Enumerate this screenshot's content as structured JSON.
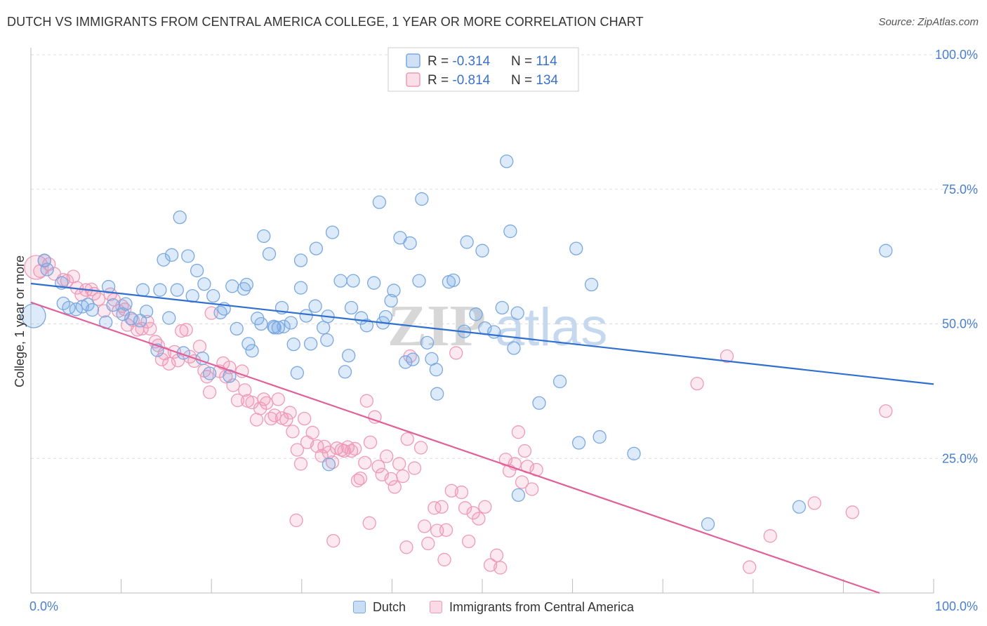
{
  "header": {
    "title": "DUTCH VS IMMIGRANTS FROM CENTRAL AMERICA COLLEGE, 1 YEAR OR MORE CORRELATION CHART",
    "source": "Source: ZipAtlas.com"
  },
  "watermark": {
    "text_a": "ZIP",
    "text_b": "atlas"
  },
  "legend": {
    "rows": [
      {
        "r_label": "R = ",
        "r_value": "-0.314",
        "n_label": "N = ",
        "n_value": "114"
      },
      {
        "r_label": "R = ",
        "r_value": "-0.814",
        "n_label": "N = ",
        "n_value": "134"
      }
    ]
  },
  "colors": {
    "dutch_fill": "rgba(120,170,230,0.25)",
    "dutch_stroke": "#7aa8e0",
    "dutch_line": "#2f6fd0",
    "imm_fill": "rgba(240,150,180,0.22)",
    "imm_stroke": "#ee9ab8",
    "imm_line": "#e0609a",
    "tick_blue": "#4a7fcf",
    "grid": "#dddddd"
  },
  "chart_data": {
    "type": "scatter",
    "title": "DUTCH VS IMMIGRANTS FROM CENTRAL AMERICA COLLEGE, 1 YEAR OR MORE CORRELATION CHART",
    "xlabel": "",
    "ylabel": "College, 1 year or more",
    "xlim": [
      0,
      100
    ],
    "ylim": [
      0,
      100
    ],
    "x_tick_labels": [
      "0.0%",
      "100.0%"
    ],
    "y_ticks": [
      {
        "value": 25,
        "label": "25.0%"
      },
      {
        "value": 50,
        "label": "50.0%"
      },
      {
        "value": 75,
        "label": "75.0%"
      },
      {
        "value": 100,
        "label": "100.0%"
      }
    ],
    "grid": true,
    "legend_position": "top-center",
    "series": [
      {
        "name": "Dutch",
        "r": -0.314,
        "n": 114,
        "trend": {
          "x": [
            0,
            100
          ],
          "y": [
            57.5,
            38.8
          ]
        },
        "points": [
          [
            0.3,
            51.5,
            "L"
          ],
          [
            1.5,
            61.8
          ],
          [
            1.8,
            60.1
          ],
          [
            3.4,
            57.6
          ],
          [
            3.6,
            53.8
          ],
          [
            4.2,
            53.0
          ],
          [
            5.0,
            52.7
          ],
          [
            5.7,
            53.2
          ],
          [
            6.3,
            53.6
          ],
          [
            6.8,
            52.6
          ],
          [
            8.3,
            50.3
          ],
          [
            8.6,
            56.9
          ],
          [
            9.1,
            53.5
          ],
          [
            10.2,
            51.8
          ],
          [
            10.5,
            53.7
          ],
          [
            11.1,
            51.0
          ],
          [
            12.1,
            50.6
          ],
          [
            12.4,
            56.3
          ],
          [
            12.8,
            52.3
          ],
          [
            14.0,
            45.1
          ],
          [
            14.3,
            56.3
          ],
          [
            14.7,
            61.9
          ],
          [
            15.3,
            51.1
          ],
          [
            15.6,
            62.8
          ],
          [
            16.2,
            56.3
          ],
          [
            16.5,
            69.8
          ],
          [
            16.9,
            44.6
          ],
          [
            17.4,
            62.6
          ],
          [
            17.9,
            55.2
          ],
          [
            18.4,
            59.9
          ],
          [
            19.0,
            43.6
          ],
          [
            19.2,
            57.4
          ],
          [
            19.8,
            40.8
          ],
          [
            20.2,
            55.2
          ],
          [
            21.0,
            52.1
          ],
          [
            21.4,
            52.8
          ],
          [
            22.0,
            40.3
          ],
          [
            22.3,
            57.0
          ],
          [
            22.8,
            49.1
          ],
          [
            23.6,
            56.5
          ],
          [
            23.9,
            57.3
          ],
          [
            24.1,
            46.3
          ],
          [
            24.5,
            45.0
          ],
          [
            25.1,
            51.0
          ],
          [
            25.5,
            50.0
          ],
          [
            25.8,
            66.3
          ],
          [
            26.4,
            63.0
          ],
          [
            26.9,
            49.5
          ],
          [
            27.0,
            49.3
          ],
          [
            27.4,
            49.3
          ],
          [
            27.8,
            53.0
          ],
          [
            28.0,
            49.5
          ],
          [
            28.8,
            50.2
          ],
          [
            29.1,
            46.2
          ],
          [
            29.5,
            40.9
          ],
          [
            29.9,
            56.7
          ],
          [
            29.9,
            61.8
          ],
          [
            30.5,
            51.5
          ],
          [
            31.0,
            46.3
          ],
          [
            31.5,
            53.3
          ],
          [
            31.6,
            64.0
          ],
          [
            32.4,
            49.3
          ],
          [
            32.8,
            47.0
          ],
          [
            32.9,
            51.4
          ],
          [
            33.4,
            67.0
          ],
          [
            34.3,
            58.0
          ],
          [
            34.8,
            41.1
          ],
          [
            35.2,
            44.1
          ],
          [
            35.5,
            53.0
          ],
          [
            35.7,
            58.0
          ],
          [
            36.6,
            51.1
          ],
          [
            37.2,
            49.7
          ],
          [
            38.0,
            57.6
          ],
          [
            38.6,
            72.6
          ],
          [
            39.0,
            50.2
          ],
          [
            39.3,
            51.3
          ],
          [
            39.9,
            54.3
          ],
          [
            40.2,
            56.2
          ],
          [
            40.9,
            66.0
          ],
          [
            41.5,
            42.9
          ],
          [
            42.0,
            65.0
          ],
          [
            42.3,
            43.4
          ],
          [
            43.0,
            58.0
          ],
          [
            43.3,
            73.2
          ],
          [
            43.9,
            46.5
          ],
          [
            44.4,
            43.5
          ],
          [
            44.9,
            41.5
          ],
          [
            45.0,
            37.0
          ],
          [
            46.3,
            57.8
          ],
          [
            46.8,
            58.1
          ],
          [
            48.0,
            48.6
          ],
          [
            48.3,
            65.2
          ],
          [
            49.3,
            51.8
          ],
          [
            50.0,
            63.6
          ],
          [
            50.3,
            49.2
          ],
          [
            51.3,
            48.5
          ],
          [
            52.2,
            53.0
          ],
          [
            52.7,
            80.2
          ],
          [
            53.1,
            67.2
          ],
          [
            53.5,
            45.5
          ],
          [
            53.9,
            52.0
          ],
          [
            54.0,
            18.2
          ],
          [
            56.3,
            35.3
          ],
          [
            58.6,
            39.3
          ],
          [
            60.4,
            64.0
          ],
          [
            60.7,
            27.9
          ],
          [
            62.1,
            57.3
          ],
          [
            63.0,
            29.0
          ],
          [
            66.8,
            25.9
          ],
          [
            33.0,
            23.9
          ],
          [
            75.0,
            12.8
          ],
          [
            85.1,
            16.0
          ],
          [
            94.7,
            63.6
          ]
        ]
      },
      {
        "name": "Immigrants from Central America",
        "r": -0.814,
        "n": 134,
        "trend": {
          "x": [
            0,
            94
          ],
          "y": [
            54.0,
            0
          ]
        },
        "points": [
          [
            0.6,
            60.5,
            "L"
          ],
          [
            1.0,
            59.8
          ],
          [
            1.5,
            61.7
          ],
          [
            2.0,
            61.1
          ],
          [
            2.6,
            59.3
          ],
          [
            3.6,
            58.2
          ],
          [
            4.0,
            58.0
          ],
          [
            4.7,
            58.8
          ],
          [
            5.1,
            56.7
          ],
          [
            5.6,
            55.4
          ],
          [
            6.1,
            56.3
          ],
          [
            6.7,
            56.4
          ],
          [
            7.0,
            55.6
          ],
          [
            7.5,
            54.6
          ],
          [
            8.1,
            52.4
          ],
          [
            8.8,
            55.5
          ],
          [
            9.2,
            54.5
          ],
          [
            9.7,
            52.4
          ],
          [
            10.1,
            53.3
          ],
          [
            10.4,
            52.7
          ],
          [
            10.7,
            49.8
          ],
          [
            11.3,
            50.7
          ],
          [
            11.8,
            48.9
          ],
          [
            12.3,
            49.1
          ],
          [
            12.9,
            50.4
          ],
          [
            13.2,
            49.1
          ],
          [
            13.8,
            46.7
          ],
          [
            14.1,
            46.0
          ],
          [
            14.5,
            43.4
          ],
          [
            14.8,
            44.5
          ],
          [
            15.3,
            42.6
          ],
          [
            15.9,
            44.8
          ],
          [
            16.3,
            43.2
          ],
          [
            16.7,
            48.7
          ],
          [
            17.2,
            48.9
          ],
          [
            17.6,
            43.9
          ],
          [
            18.1,
            43.1
          ],
          [
            18.7,
            45.8
          ],
          [
            19.2,
            41.3
          ],
          [
            19.5,
            40.2
          ],
          [
            19.8,
            37.3
          ],
          [
            20.0,
            52.0
          ],
          [
            20.9,
            41.2
          ],
          [
            21.3,
            42.7
          ],
          [
            21.6,
            40.2
          ],
          [
            22.0,
            41.9
          ],
          [
            22.4,
            38.6
          ],
          [
            22.9,
            35.8
          ],
          [
            23.4,
            41.2
          ],
          [
            23.7,
            37.7
          ],
          [
            24.0,
            35.7
          ],
          [
            24.5,
            35.4
          ],
          [
            25.0,
            32.2
          ],
          [
            25.4,
            34.3
          ],
          [
            25.8,
            36.0
          ],
          [
            26.1,
            35.3
          ],
          [
            26.6,
            32.4
          ],
          [
            27.0,
            33.0
          ],
          [
            27.4,
            36.0
          ],
          [
            27.8,
            32.5
          ],
          [
            28.3,
            32.2
          ],
          [
            28.7,
            33.5
          ],
          [
            29.0,
            30.0
          ],
          [
            29.5,
            26.6
          ],
          [
            29.9,
            24.0
          ],
          [
            30.3,
            32.4
          ],
          [
            30.6,
            28.0
          ],
          [
            31.2,
            29.8
          ],
          [
            31.7,
            27.3
          ],
          [
            32.2,
            25.5
          ],
          [
            32.5,
            27.2
          ],
          [
            33.0,
            26.1
          ],
          [
            33.4,
            24.3
          ],
          [
            33.9,
            26.9
          ],
          [
            34.4,
            26.6
          ],
          [
            34.7,
            26.4
          ],
          [
            35.1,
            27.1
          ],
          [
            35.5,
            26.4
          ],
          [
            35.9,
            26.8
          ],
          [
            36.2,
            20.9
          ],
          [
            36.5,
            21.3
          ],
          [
            37.0,
            24.2
          ],
          [
            37.2,
            35.7
          ],
          [
            37.6,
            28.0
          ],
          [
            38.1,
            32.7
          ],
          [
            38.5,
            23.5
          ],
          [
            38.9,
            22.0
          ],
          [
            39.4,
            25.4
          ],
          [
            39.9,
            21.2
          ],
          [
            40.3,
            19.7
          ],
          [
            40.8,
            24.0
          ],
          [
            41.2,
            21.7
          ],
          [
            41.7,
            28.6
          ],
          [
            42.0,
            44.0
          ],
          [
            42.5,
            23.2
          ],
          [
            43.2,
            27.0
          ],
          [
            43.6,
            12.4
          ],
          [
            44.0,
            9.2
          ],
          [
            44.7,
            15.8
          ],
          [
            45.0,
            11.6
          ],
          [
            45.5,
            16.0
          ],
          [
            46.0,
            11.7
          ],
          [
            46.6,
            19.0
          ],
          [
            47.1,
            44.6
          ],
          [
            47.7,
            18.7
          ],
          [
            48.1,
            15.8
          ],
          [
            48.5,
            9.6
          ],
          [
            49.0,
            14.9
          ],
          [
            49.6,
            13.8
          ],
          [
            50.3,
            16.0
          ],
          [
            50.9,
            5.2
          ],
          [
            51.6,
            7.0
          ],
          [
            52.0,
            4.7
          ],
          [
            52.6,
            24.8
          ],
          [
            53.0,
            22.7
          ],
          [
            53.6,
            24.0
          ],
          [
            54.0,
            29.9
          ],
          [
            54.4,
            20.6
          ],
          [
            54.7,
            26.4
          ],
          [
            55.0,
            23.5
          ],
          [
            55.5,
            19.3
          ],
          [
            56.0,
            22.9
          ],
          [
            73.8,
            38.9
          ],
          [
            77.1,
            44.0
          ],
          [
            79.6,
            4.8
          ],
          [
            81.9,
            10.6
          ],
          [
            86.8,
            16.7
          ],
          [
            91.0,
            15.0
          ],
          [
            94.7,
            33.8
          ],
          [
            29.4,
            13.5
          ],
          [
            33.5,
            9.7
          ],
          [
            37.5,
            13.0
          ],
          [
            41.6,
            8.5
          ],
          [
            45.8,
            6.2
          ]
        ]
      }
    ]
  },
  "bottom_legend": [
    {
      "label": "Dutch"
    },
    {
      "label": "Immigrants from Central America"
    }
  ]
}
